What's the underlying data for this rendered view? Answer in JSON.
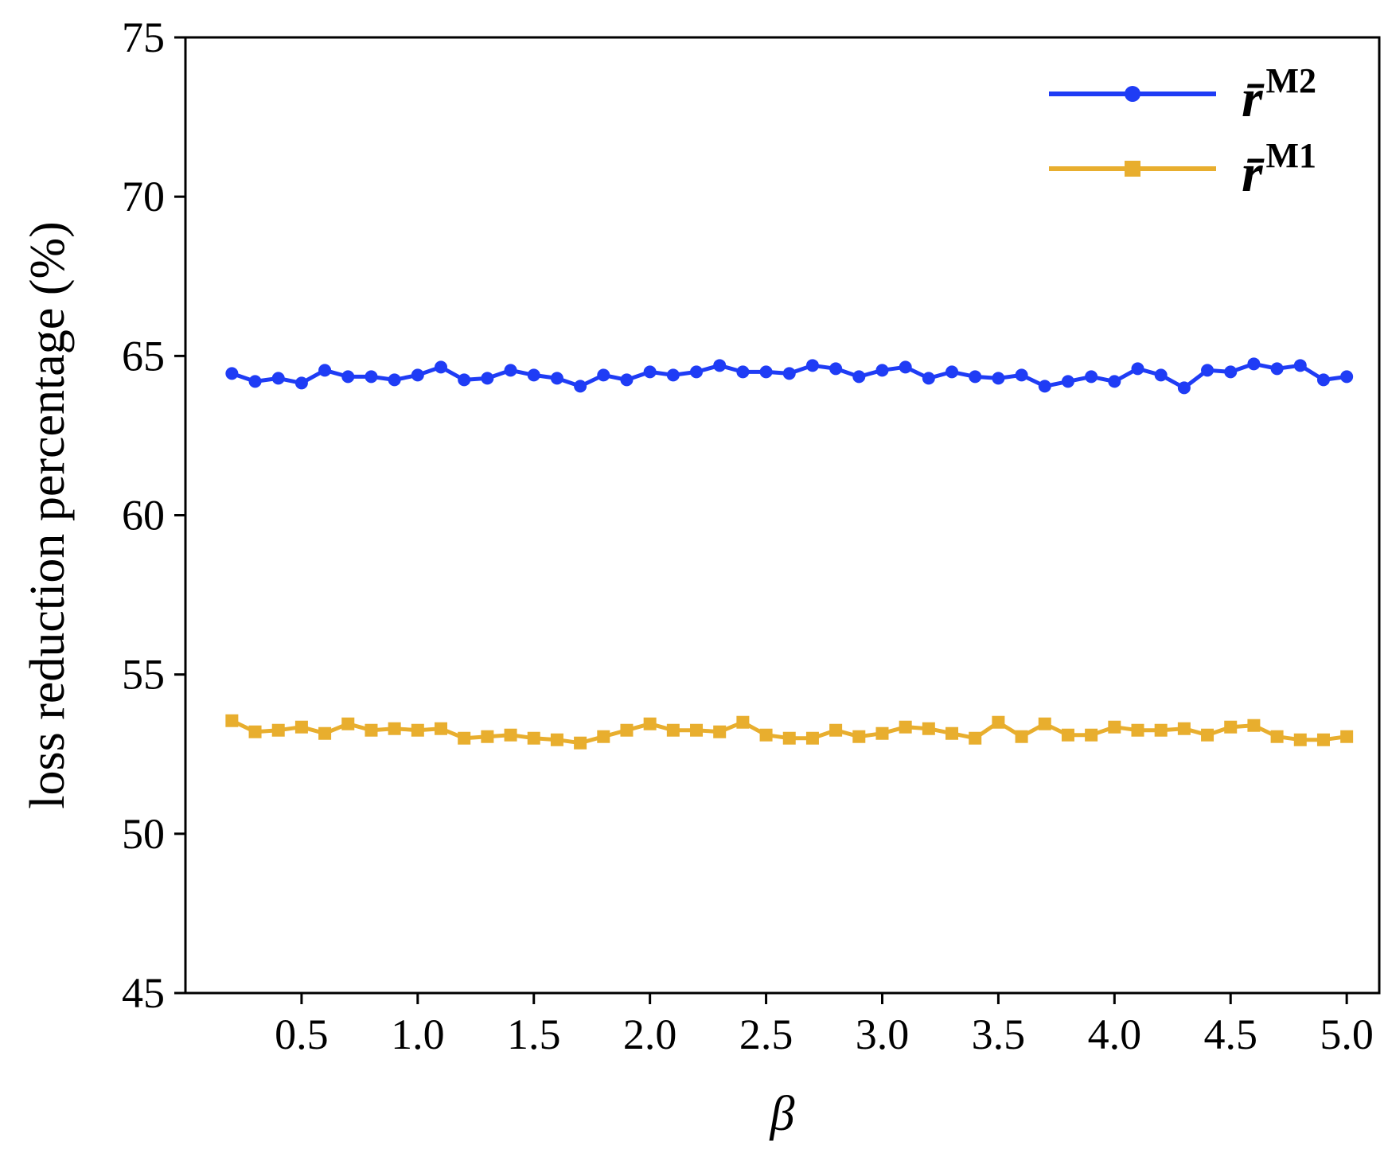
{
  "chart_data": {
    "type": "line",
    "title": "",
    "xlabel": "β",
    "ylabel": "loss reduction percentage (%)",
    "xlim": [
      0.2,
      5.0
    ],
    "ylim": [
      45,
      75
    ],
    "xticks": [
      0.5,
      1.0,
      1.5,
      2.0,
      2.5,
      3.0,
      3.5,
      4.0,
      4.5,
      5.0
    ],
    "xtick_labels": [
      "0.5",
      "1.0",
      "1.5",
      "2.0",
      "2.5",
      "3.0",
      "3.5",
      "4.0",
      "4.5",
      "5.0"
    ],
    "yticks": [
      45,
      50,
      55,
      60,
      65,
      70,
      75
    ],
    "ytick_labels": [
      "45",
      "50",
      "55",
      "60",
      "65",
      "70",
      "75"
    ],
    "grid": false,
    "legend_position": "top-right",
    "x": [
      0.2,
      0.3,
      0.4,
      0.5,
      0.6,
      0.7,
      0.8,
      0.9,
      1.0,
      1.1,
      1.2,
      1.3,
      1.4,
      1.5,
      1.6,
      1.7,
      1.8,
      1.9,
      2.0,
      2.1,
      2.2,
      2.3,
      2.4,
      2.5,
      2.6,
      2.7,
      2.8,
      2.9,
      3.0,
      3.1,
      3.2,
      3.3,
      3.4,
      3.5,
      3.6,
      3.7,
      3.8,
      3.9,
      4.0,
      4.1,
      4.2,
      4.3,
      4.4,
      4.5,
      4.6,
      4.7,
      4.8,
      4.9,
      5.0
    ],
    "series": [
      {
        "name": "r̄",
        "name_superscript": "M2",
        "color": "#1f3cf5",
        "marker": "circle",
        "values": [
          64.45,
          64.2,
          64.3,
          64.15,
          64.55,
          64.35,
          64.35,
          64.25,
          64.4,
          64.65,
          64.25,
          64.3,
          64.55,
          64.4,
          64.3,
          64.05,
          64.4,
          64.25,
          64.5,
          64.4,
          64.5,
          64.7,
          64.5,
          64.5,
          64.45,
          64.7,
          64.6,
          64.35,
          64.55,
          64.65,
          64.3,
          64.5,
          64.35,
          64.3,
          64.4,
          64.05,
          64.2,
          64.35,
          64.2,
          64.6,
          64.4,
          64.0,
          64.55,
          64.5,
          64.75,
          64.6,
          64.7,
          64.25,
          64.35
        ]
      },
      {
        "name": "r̄",
        "name_superscript": "M1",
        "color": "#e8ae2e",
        "marker": "square",
        "values": [
          53.55,
          53.2,
          53.25,
          53.35,
          53.15,
          53.45,
          53.25,
          53.3,
          53.25,
          53.3,
          53.0,
          53.05,
          53.1,
          53.0,
          52.95,
          52.85,
          53.05,
          53.25,
          53.45,
          53.25,
          53.25,
          53.2,
          53.5,
          53.1,
          53.0,
          53.0,
          53.25,
          53.05,
          53.15,
          53.35,
          53.3,
          53.15,
          53.0,
          53.5,
          53.05,
          53.45,
          53.1,
          53.1,
          53.35,
          53.25,
          53.25,
          53.3,
          53.1,
          53.35,
          53.4,
          53.05,
          52.95,
          52.95,
          53.05
        ]
      }
    ]
  }
}
